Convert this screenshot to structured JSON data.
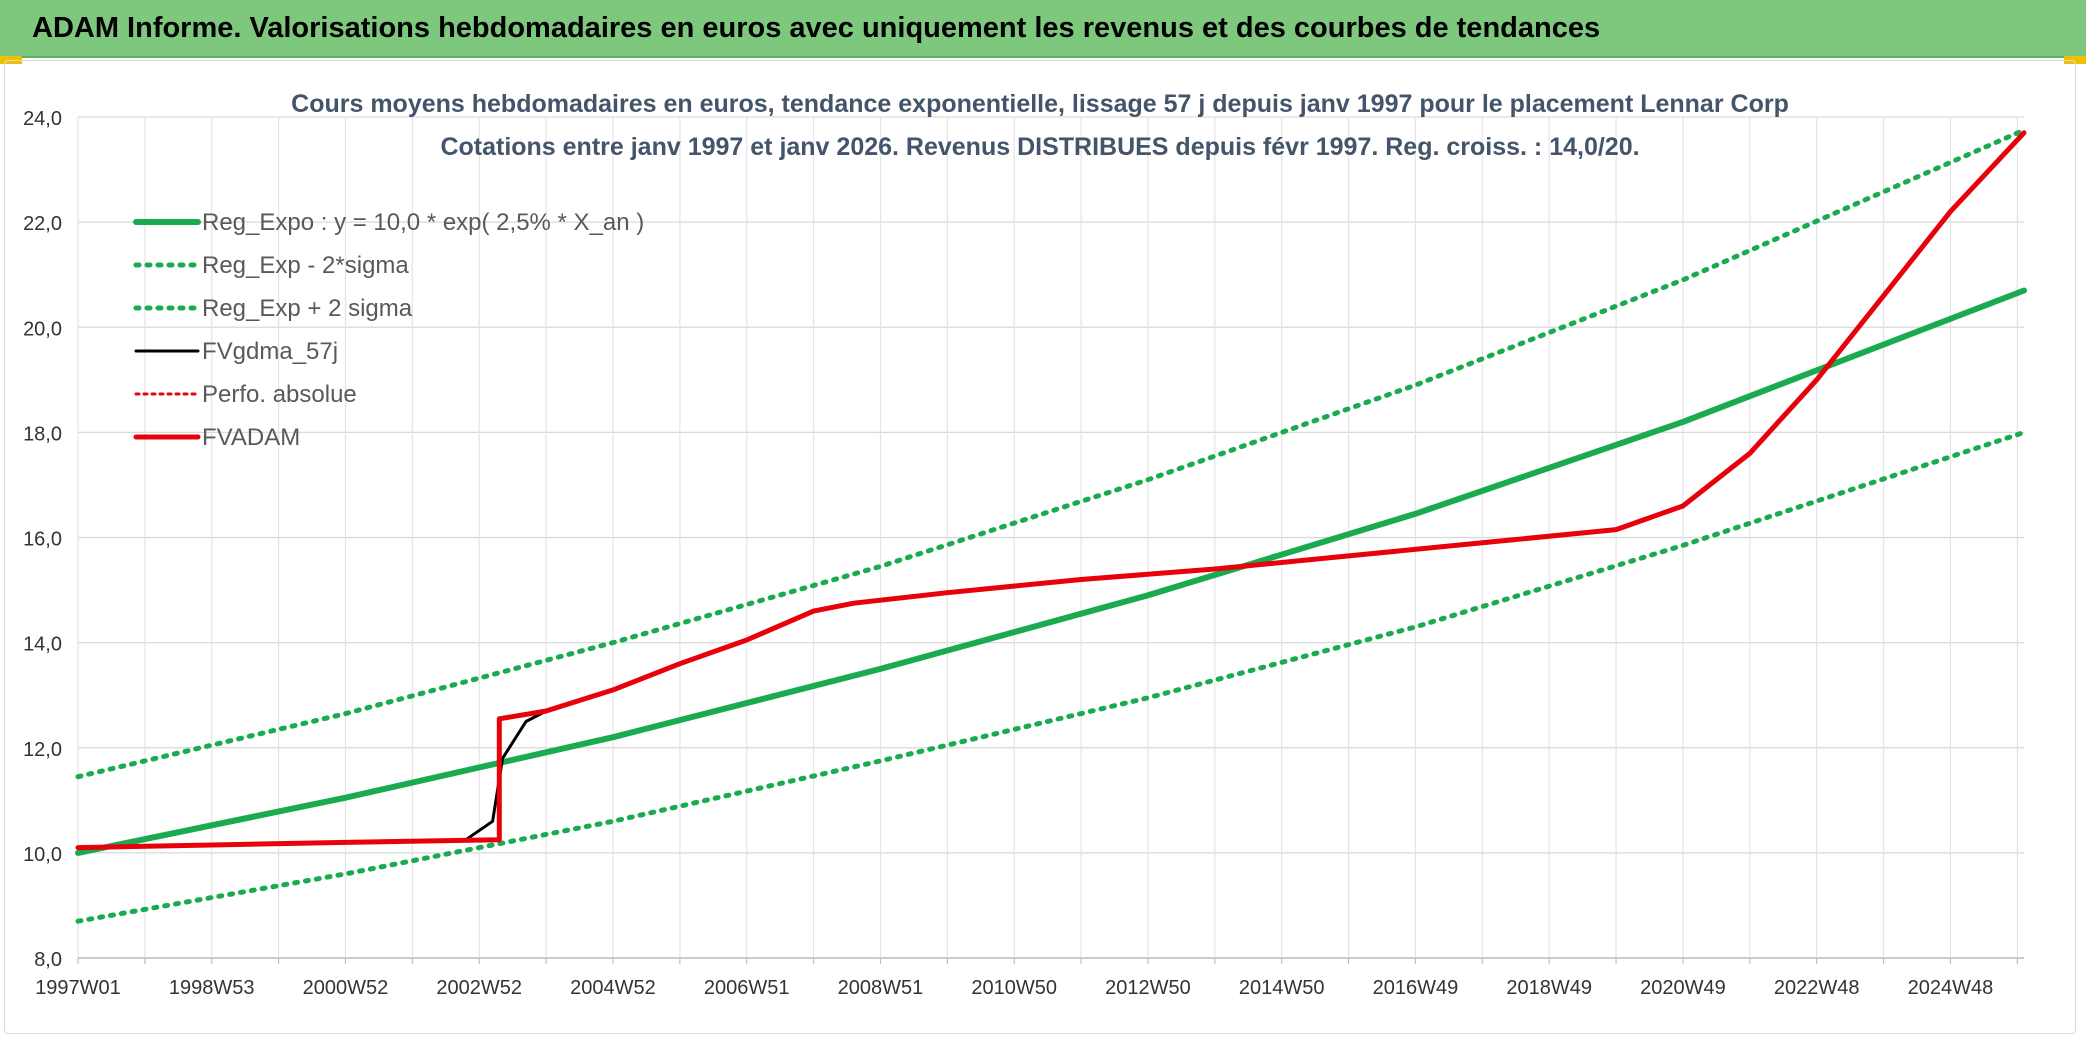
{
  "banner": {
    "title": "ADAM Informe. Valorisations hebdomadaires en euros avec uniquement les revenus et des courbes de tendances"
  },
  "chart_data": {
    "type": "line",
    "title": "Cours moyens hebdomadaires en euros, tendance exponentielle, lissage 57 j depuis janv 1997 pour le placement Lennar Corp",
    "subtitle": "Cotations entre janv 1997 et janv 2026. Revenus DISTRIBUES depuis févr 1997. Reg. croiss. : 14,0/20.",
    "xlabel": "",
    "ylabel": "",
    "x_range": [
      1997.0,
      2026.1
    ],
    "ylim": [
      8.0,
      24.0
    ],
    "y_ticks": [
      "8,0",
      "10,0",
      "12,0",
      "14,0",
      "16,0",
      "18,0",
      "20,0",
      "22,0",
      "24,0"
    ],
    "x_tick_labels": [
      {
        "year": 1997.0,
        "label": "1997W01"
      },
      {
        "year": 1999.0,
        "label": "1998W53"
      },
      {
        "year": 2001.0,
        "label": "2000W52"
      },
      {
        "year": 2003.0,
        "label": "2002W52"
      },
      {
        "year": 2005.0,
        "label": "2004W52"
      },
      {
        "year": 2007.0,
        "label": "2006W51"
      },
      {
        "year": 2009.0,
        "label": "2008W51"
      },
      {
        "year": 2011.0,
        "label": "2010W50"
      },
      {
        "year": 2013.0,
        "label": "2012W50"
      },
      {
        "year": 2015.0,
        "label": "2014W50"
      },
      {
        "year": 2017.0,
        "label": "2016W49"
      },
      {
        "year": 2019.0,
        "label": "2018W49"
      },
      {
        "year": 2021.0,
        "label": "2020W49"
      },
      {
        "year": 2023.0,
        "label": "2022W48"
      },
      {
        "year": 2025.0,
        "label": "2024W48"
      }
    ],
    "grid": true,
    "legend_position": "top-left",
    "series": [
      {
        "name": "Reg_Expo : y = 10,0 * exp( 2,5% *  X_an )",
        "color": "#1aaa50",
        "style": "solid",
        "x": [
          1997.0,
          2001.0,
          2005.0,
          2009.0,
          2013.0,
          2017.0,
          2021.0,
          2026.1
        ],
        "y": [
          10.0,
          11.05,
          12.2,
          13.5,
          14.9,
          16.45,
          18.2,
          20.7
        ]
      },
      {
        "name": "Reg_Exp - 2*sigma",
        "color": "#1aaa50",
        "style": "dotted",
        "x": [
          1997.0,
          2001.0,
          2005.0,
          2009.0,
          2013.0,
          2017.0,
          2021.0,
          2026.1
        ],
        "y": [
          8.7,
          9.6,
          10.6,
          11.75,
          12.95,
          14.3,
          15.85,
          18.0
        ]
      },
      {
        "name": "Reg_Exp + 2 sigma",
        "color": "#1aaa50",
        "style": "dotted",
        "x": [
          1997.0,
          2001.0,
          2005.0,
          2009.0,
          2013.0,
          2017.0,
          2021.0,
          2026.1
        ],
        "y": [
          11.45,
          12.65,
          14.0,
          15.45,
          17.1,
          18.9,
          20.9,
          23.75
        ]
      },
      {
        "name": "FVgdma_57j",
        "color": "#000000",
        "style": "solid",
        "x": [
          1997.0,
          1999.0,
          2001.0,
          2002.8,
          2003.2,
          2003.35,
          2003.7,
          2004.0,
          2005.0,
          2006.0,
          2007.0,
          2008.0,
          2008.6,
          2010.0,
          2012.0,
          2014.0,
          2016.0,
          2018.0,
          2020.0,
          2021.0,
          2022.0,
          2023.0,
          2024.0,
          2025.0,
          2026.1
        ],
        "y": [
          10.1,
          10.15,
          10.2,
          10.25,
          10.6,
          11.8,
          12.5,
          12.7,
          13.1,
          13.6,
          14.05,
          14.6,
          14.75,
          14.95,
          15.2,
          15.4,
          15.65,
          15.9,
          16.15,
          16.6,
          17.6,
          19.0,
          20.6,
          22.2,
          23.7
        ]
      },
      {
        "name": "Perfo. absolue",
        "color": "#e8000b",
        "style": "dotted",
        "x": [
          1997.0,
          1999.0,
          2001.0,
          2003.3,
          2003.3,
          2004.0,
          2005.0,
          2006.0,
          2007.0,
          2008.0,
          2008.6,
          2010.0,
          2012.0,
          2014.0,
          2016.0,
          2018.0,
          2020.0,
          2021.0,
          2022.0,
          2023.0,
          2024.0,
          2025.0,
          2026.1
        ],
        "y": [
          10.1,
          10.15,
          10.2,
          10.25,
          12.55,
          12.7,
          13.1,
          13.6,
          14.05,
          14.6,
          14.75,
          14.95,
          15.2,
          15.4,
          15.65,
          15.9,
          16.15,
          16.6,
          17.6,
          19.0,
          20.6,
          22.2,
          23.7
        ]
      },
      {
        "name": "FVADAM",
        "color": "#e8000b",
        "style": "solid",
        "x": [
          1997.0,
          1999.0,
          2001.0,
          2003.3,
          2003.3,
          2004.0,
          2005.0,
          2006.0,
          2007.0,
          2008.0,
          2008.6,
          2010.0,
          2012.0,
          2014.0,
          2016.0,
          2018.0,
          2020.0,
          2021.0,
          2022.0,
          2023.0,
          2024.0,
          2025.0,
          2026.1
        ],
        "y": [
          10.1,
          10.15,
          10.2,
          10.25,
          12.55,
          12.7,
          13.1,
          13.6,
          14.05,
          14.6,
          14.75,
          14.95,
          15.2,
          15.4,
          15.65,
          15.9,
          16.15,
          16.6,
          17.6,
          19.0,
          20.6,
          22.2,
          23.7
        ]
      }
    ]
  }
}
